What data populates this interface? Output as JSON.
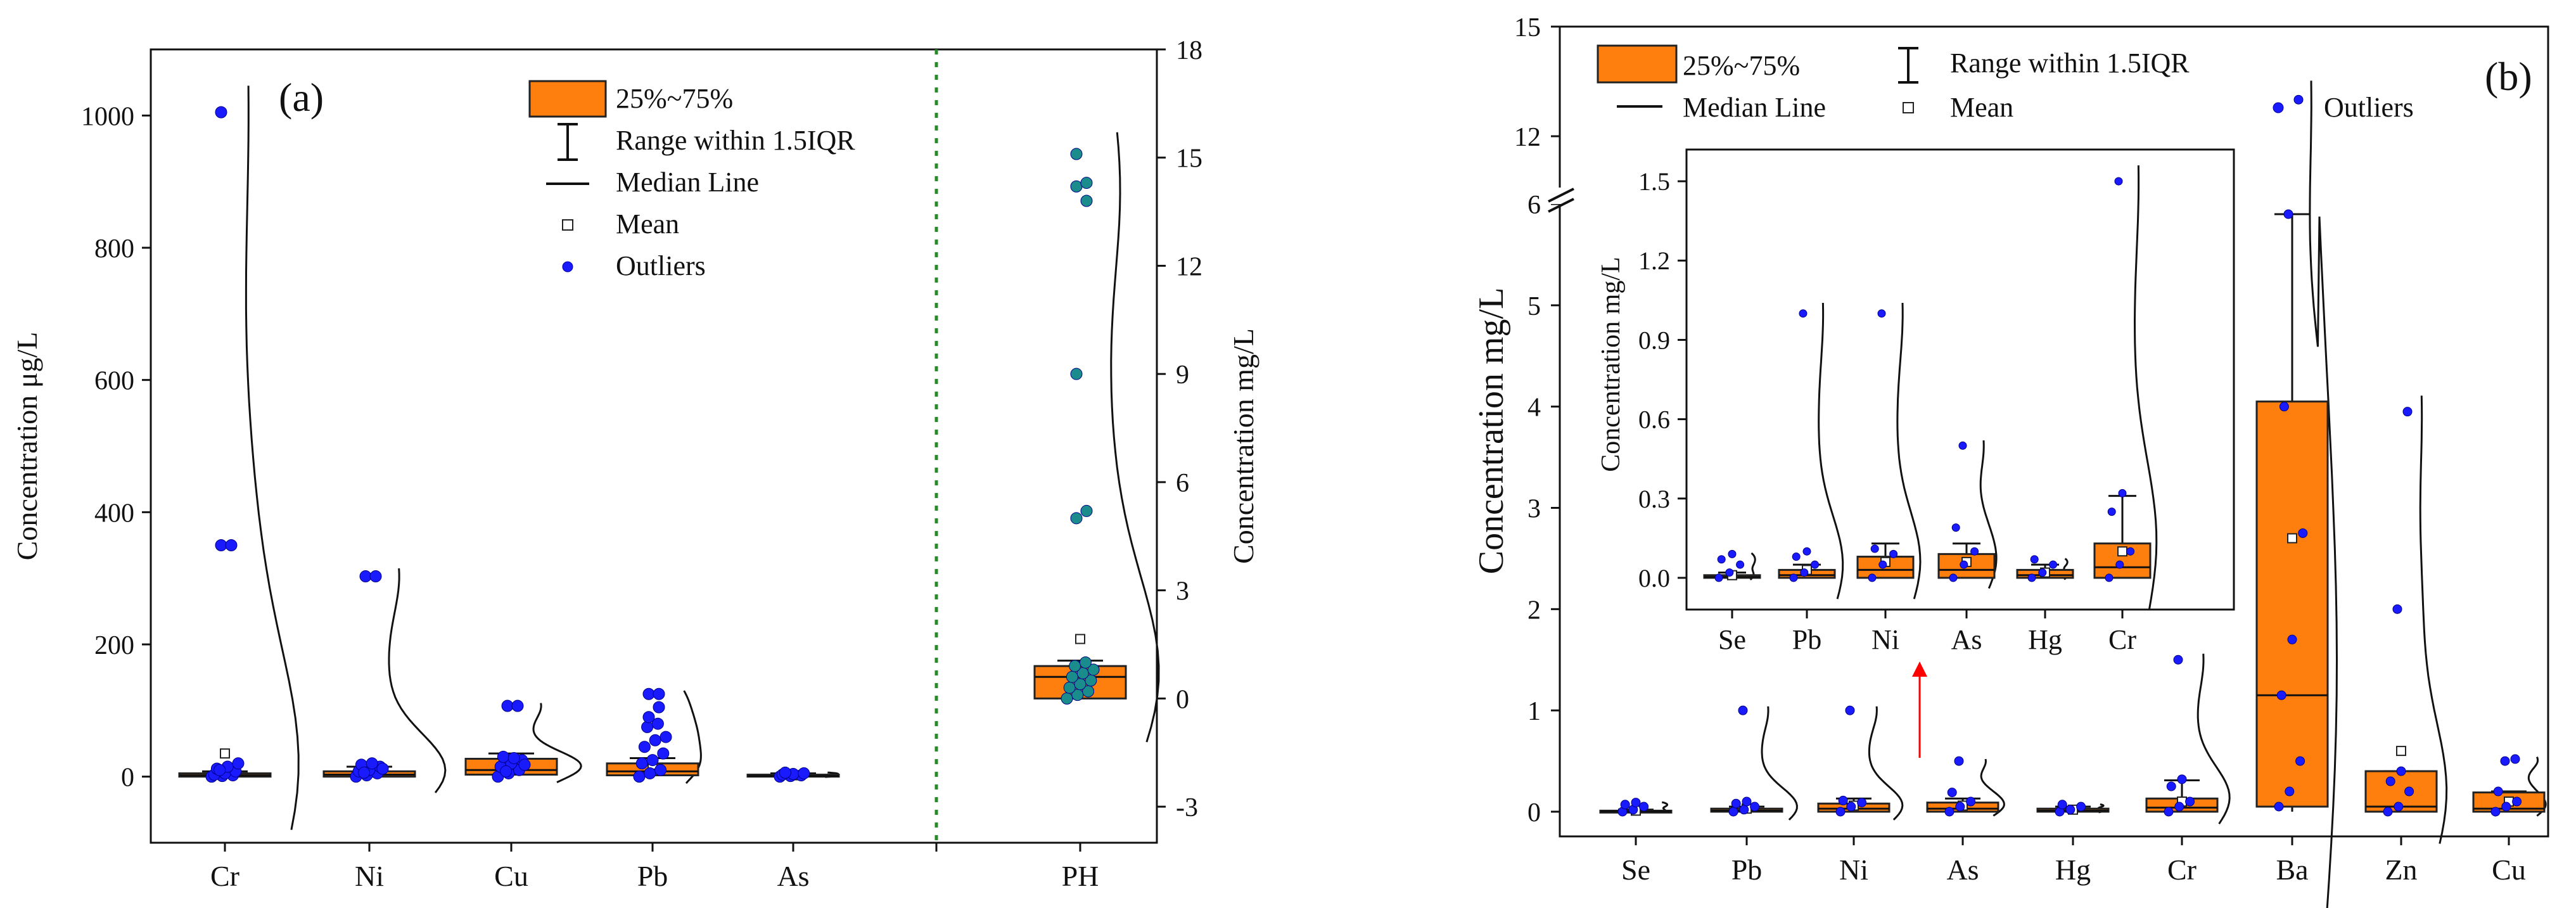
{
  "colors": {
    "box_fill": "#ff7f0e",
    "box_edge": "#222222",
    "outlier_blue": "#1a1aff",
    "outlier_teal": "#1a8c8c",
    "divider_green": "#2a8a2a",
    "arrow_red": "#ff0000",
    "axis": "#111111"
  },
  "legend": {
    "box": "25%~75%",
    "range": "Range within 1.5IQR",
    "median": "Median Line",
    "mean": "Mean",
    "outliers": "Outliers"
  },
  "chart_data": [
    {
      "panel": "(a)",
      "type": "box",
      "ylabel": "Concentration μg/L",
      "ylim": [
        -100,
        1100
      ],
      "yticks": [
        0,
        200,
        400,
        600,
        800,
        1000
      ],
      "y2label": "Concentration mg/L",
      "y2lim": [
        -4,
        18
      ],
      "y2ticks": [
        -3,
        0,
        3,
        6,
        9,
        12,
        15,
        18
      ],
      "groups": [
        {
          "name": "Cr",
          "q1": 0,
          "median": 2,
          "q3": 5,
          "whisker_low": 0,
          "whisker_high": 8,
          "mean": 35,
          "points": [
            0,
            1,
            2,
            3,
            5,
            8,
            12,
            15,
            20,
            10
          ],
          "outliers": [
            350,
            350,
            1005
          ]
        },
        {
          "name": "Ni",
          "q1": 0,
          "median": 3,
          "q3": 8,
          "whisker_low": 0,
          "whisker_high": 15,
          "mean": 12,
          "points": [
            0,
            2,
            5,
            8,
            10,
            15,
            18,
            20,
            12,
            6
          ],
          "outliers": [
            303,
            303
          ]
        },
        {
          "name": "Cu",
          "q1": 3,
          "median": 10,
          "q3": 27,
          "whisker_low": 0,
          "whisker_high": 35,
          "mean": 20,
          "points": [
            0,
            5,
            10,
            15,
            20,
            25,
            30,
            28,
            18,
            8
          ],
          "outliers": [
            107,
            107
          ]
        },
        {
          "name": "Pb",
          "q1": 2,
          "median": 8,
          "q3": 20,
          "whisker_low": 0,
          "whisker_high": 28,
          "mean": 18,
          "points": [
            0,
            5,
            10,
            20,
            25,
            35,
            45,
            55,
            60,
            75,
            80
          ],
          "outliers": [
            90,
            105,
            125,
            125
          ]
        },
        {
          "name": "As",
          "q1": 0,
          "median": 1,
          "q3": 3,
          "whisker_low": 0,
          "whisker_high": 5,
          "mean": 2,
          "points": [
            0,
            1,
            2,
            3,
            4,
            5,
            6
          ],
          "outliers": []
        },
        {
          "name": "PH",
          "axis": "right",
          "q1": 0,
          "median": 0.6,
          "q3": 0.9,
          "whisker_low": 0,
          "whisker_high": 1.05,
          "mean": 1.65,
          "points": [
            0,
            0.1,
            0.2,
            0.3,
            0.4,
            0.5,
            0.6,
            0.7,
            0.8,
            0.9,
            1.0
          ],
          "outliers": [
            5,
            5.2,
            9,
            13.8,
            14.2,
            14.3,
            15.1
          ]
        }
      ]
    },
    {
      "panel": "(b)",
      "type": "box",
      "ylabel": "Concentration mg/L",
      "ylim": [
        -0.15,
        15
      ],
      "yticks_lower": [
        0,
        1,
        2,
        3,
        4,
        5,
        6
      ],
      "yticks_upper": [
        12,
        15
      ],
      "axis_break": "6-12",
      "groups": [
        {
          "name": "Se",
          "q1": 0,
          "median": 0.003,
          "q3": 0.01,
          "whisker_low": 0,
          "whisker_high": 0.02,
          "mean": 0.01,
          "points": [
            0.0,
            0.02,
            0.05,
            0.07,
            0.09
          ],
          "outliers": []
        },
        {
          "name": "Pb",
          "q1": 0,
          "median": 0.01,
          "q3": 0.03,
          "whisker_low": 0,
          "whisker_high": 0.05,
          "mean": 0.03,
          "points": [
            0.0,
            0.02,
            0.05,
            0.08,
            0.1
          ],
          "outliers": [
            1.0
          ]
        },
        {
          "name": "Ni",
          "q1": 0,
          "median": 0.03,
          "q3": 0.08,
          "whisker_low": 0,
          "whisker_high": 0.13,
          "mean": 0.06,
          "points": [
            0.0,
            0.05,
            0.09,
            0.11
          ],
          "outliers": [
            1.0
          ]
        },
        {
          "name": "As",
          "q1": 0,
          "median": 0.03,
          "q3": 0.09,
          "whisker_low": 0,
          "whisker_high": 0.13,
          "mean": 0.06,
          "points": [
            0.0,
            0.05,
            0.1,
            0.19
          ],
          "outliers": [
            0.5
          ]
        },
        {
          "name": "Hg",
          "q1": 0,
          "median": 0.01,
          "q3": 0.03,
          "whisker_low": 0,
          "whisker_high": 0.05,
          "mean": 0.02,
          "points": [
            0.0,
            0.02,
            0.05,
            0.07
          ],
          "outliers": []
        },
        {
          "name": "Cr",
          "q1": 0,
          "median": 0.04,
          "q3": 0.13,
          "whisker_low": 0,
          "whisker_high": 0.31,
          "mean": 0.1,
          "points": [
            0.0,
            0.05,
            0.1,
            0.25,
            0.32
          ],
          "outliers": [
            1.5
          ]
        },
        {
          "name": "Ba",
          "q1": 0.05,
          "median": 1.15,
          "q3": 4.05,
          "whisker_low": 0,
          "whisker_high": 5.9,
          "mean": 2.7,
          "points": [
            0.05,
            0.2,
            0.5,
            1.15,
            1.7,
            2.75,
            4.0
          ],
          "outliers": [
            5.9,
            13.0
          ]
        },
        {
          "name": "Zn",
          "q1": 0,
          "median": 0.05,
          "q3": 0.4,
          "whisker_low": 0,
          "whisker_high": 0.4,
          "mean": 0.6,
          "points": [
            0.0,
            0.05,
            0.2,
            0.3,
            0.4
          ],
          "outliers": [
            2.0,
            3.95
          ]
        },
        {
          "name": "Cu",
          "q1": 0,
          "median": 0.03,
          "q3": 0.19,
          "whisker_low": 0,
          "whisker_high": 0.2,
          "mean": 0.1,
          "points": [
            0.0,
            0.05,
            0.1,
            0.2
          ],
          "outliers": [
            0.5,
            0.52
          ]
        }
      ],
      "inset": {
        "ylabel": "Concentration mg/L",
        "ylim": [
          -0.12,
          1.62
        ],
        "yticks": [
          "0.0",
          "0.3",
          "0.6",
          "0.9",
          "1.2",
          "1.5"
        ],
        "groups": [
          "Se",
          "Pb",
          "Ni",
          "As",
          "Hg",
          "Cr"
        ]
      }
    }
  ]
}
